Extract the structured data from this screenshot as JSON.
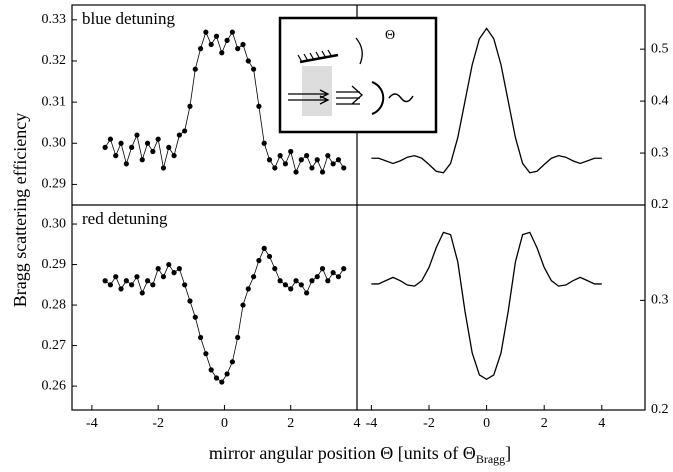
{
  "y_label": "Bragg scattering efficiency",
  "x_label": {
    "text": "mirror angular position Θ  [units of Θ",
    "subscript": "Bragg",
    "close": "]"
  },
  "inset_label": "Θ",
  "chart_data": [
    {
      "type": "scatter",
      "label": "blue detuning",
      "color": "#000000",
      "x": [
        -3.6,
        -3.44,
        -3.28,
        -3.12,
        -2.96,
        -2.8,
        -2.64,
        -2.48,
        -2.32,
        -2.16,
        -2.0,
        -1.84,
        -1.68,
        -1.52,
        -1.36,
        -1.2,
        -1.04,
        -0.88,
        -0.72,
        -0.56,
        -0.4,
        -0.24,
        -0.08,
        0.08,
        0.24,
        0.4,
        0.56,
        0.72,
        0.88,
        1.04,
        1.2,
        1.36,
        1.52,
        1.68,
        1.84,
        2.0,
        2.16,
        2.32,
        2.48,
        2.64,
        2.8,
        2.96,
        3.12,
        3.28,
        3.44,
        3.6
      ],
      "values": [
        0.299,
        0.301,
        0.297,
        0.3,
        0.295,
        0.299,
        0.302,
        0.296,
        0.3,
        0.298,
        0.301,
        0.294,
        0.299,
        0.297,
        0.302,
        0.303,
        0.309,
        0.318,
        0.323,
        0.327,
        0.324,
        0.326,
        0.322,
        0.325,
        0.327,
        0.323,
        0.324,
        0.32,
        0.318,
        0.309,
        0.3,
        0.296,
        0.294,
        0.297,
        0.295,
        0.298,
        0.293,
        0.296,
        0.297,
        0.294,
        0.296,
        0.293,
        0.297,
        0.295,
        0.296,
        0.294
      ],
      "xlim": [
        -4.6,
        4
      ],
      "ylim": [
        0.285,
        0.3336
      ],
      "yticks": [
        {
          "value": 0.29,
          "label": "0.29"
        },
        {
          "value": 0.3,
          "label": "0.30"
        },
        {
          "value": 0.31,
          "label": "0.31"
        },
        {
          "value": 0.32,
          "label": "0.32"
        },
        {
          "value": 0.33,
          "label": "0.33"
        }
      ]
    },
    {
      "type": "line",
      "color": "#000000",
      "x": [
        -4,
        -3.75,
        -3.5,
        -3.25,
        -3,
        -2.75,
        -2.5,
        -2.25,
        -2,
        -1.75,
        -1.5,
        -1.25,
        -1,
        -0.75,
        -0.5,
        -0.25,
        0,
        0.25,
        0.5,
        0.75,
        1,
        1.25,
        1.5,
        1.75,
        2,
        2.25,
        2.5,
        2.75,
        3,
        3.25,
        3.5,
        3.75,
        4
      ],
      "values": [
        0.29,
        0.29,
        0.285,
        0.28,
        0.285,
        0.292,
        0.295,
        0.29,
        0.278,
        0.265,
        0.262,
        0.28,
        0.33,
        0.4,
        0.47,
        0.52,
        0.54,
        0.52,
        0.47,
        0.4,
        0.33,
        0.28,
        0.262,
        0.265,
        0.278,
        0.29,
        0.295,
        0.292,
        0.285,
        0.28,
        0.285,
        0.29,
        0.29
      ],
      "xlim": [
        -4.5,
        5.5
      ],
      "ylim": [
        0.2,
        0.585
      ],
      "yticks": [
        0.2,
        0.3,
        0.4,
        0.5
      ]
    },
    {
      "type": "scatter",
      "label": "red detuning",
      "color": "#000000",
      "x": [
        -3.6,
        -3.44,
        -3.28,
        -3.12,
        -2.96,
        -2.8,
        -2.64,
        -2.48,
        -2.32,
        -2.16,
        -2.0,
        -1.84,
        -1.68,
        -1.52,
        -1.36,
        -1.2,
        -1.04,
        -0.88,
        -0.72,
        -0.56,
        -0.4,
        -0.24,
        -0.08,
        0.08,
        0.24,
        0.4,
        0.56,
        0.72,
        0.88,
        1.04,
        1.2,
        1.36,
        1.52,
        1.68,
        1.84,
        2.0,
        2.16,
        2.32,
        2.48,
        2.64,
        2.8,
        2.96,
        3.12,
        3.28,
        3.44,
        3.6
      ],
      "values": [
        0.286,
        0.285,
        0.287,
        0.284,
        0.286,
        0.285,
        0.287,
        0.283,
        0.286,
        0.285,
        0.289,
        0.287,
        0.29,
        0.288,
        0.289,
        0.285,
        0.281,
        0.277,
        0.272,
        0.268,
        0.264,
        0.262,
        0.261,
        0.263,
        0.266,
        0.272,
        0.28,
        0.284,
        0.287,
        0.291,
        0.294,
        0.292,
        0.289,
        0.286,
        0.285,
        0.284,
        0.286,
        0.285,
        0.283,
        0.286,
        0.287,
        0.289,
        0.286,
        0.288,
        0.287,
        0.289
      ],
      "xlim": [
        -4.6,
        4
      ],
      "ylim": [
        0.2541,
        0.3047
      ],
      "xticks": [
        -4,
        -2,
        0,
        2,
        4
      ],
      "yticks": [
        {
          "value": 0.26,
          "label": "0.26"
        },
        {
          "value": 0.27,
          "label": "0.27"
        },
        {
          "value": 0.28,
          "label": "0.28"
        },
        {
          "value": 0.29,
          "label": "0.29"
        },
        {
          "value": 0.3,
          "label": "0.30"
        }
      ]
    },
    {
      "type": "line",
      "color": "#000000",
      "x": [
        -4,
        -3.75,
        -3.5,
        -3.25,
        -3,
        -2.75,
        -2.5,
        -2.25,
        -2,
        -1.75,
        -1.5,
        -1.25,
        -1,
        -0.75,
        -0.5,
        -0.25,
        0,
        0.25,
        0.5,
        0.75,
        1,
        1.25,
        1.5,
        1.75,
        2,
        2.25,
        2.5,
        2.75,
        3,
        3.25,
        3.5,
        3.75,
        4
      ],
      "values": [
        0.315,
        0.315,
        0.318,
        0.321,
        0.318,
        0.314,
        0.313,
        0.318,
        0.33,
        0.348,
        0.362,
        0.36,
        0.335,
        0.29,
        0.252,
        0.232,
        0.228,
        0.232,
        0.252,
        0.29,
        0.335,
        0.36,
        0.362,
        0.348,
        0.33,
        0.318,
        0.313,
        0.314,
        0.318,
        0.321,
        0.318,
        0.315,
        0.315
      ],
      "xlim": [
        -4.5,
        5.5
      ],
      "ylim": [
        0.2,
        0.387
      ],
      "xticks": [
        -4,
        -2,
        0,
        2,
        4
      ],
      "yticks": [
        0.2,
        0.3
      ]
    }
  ]
}
